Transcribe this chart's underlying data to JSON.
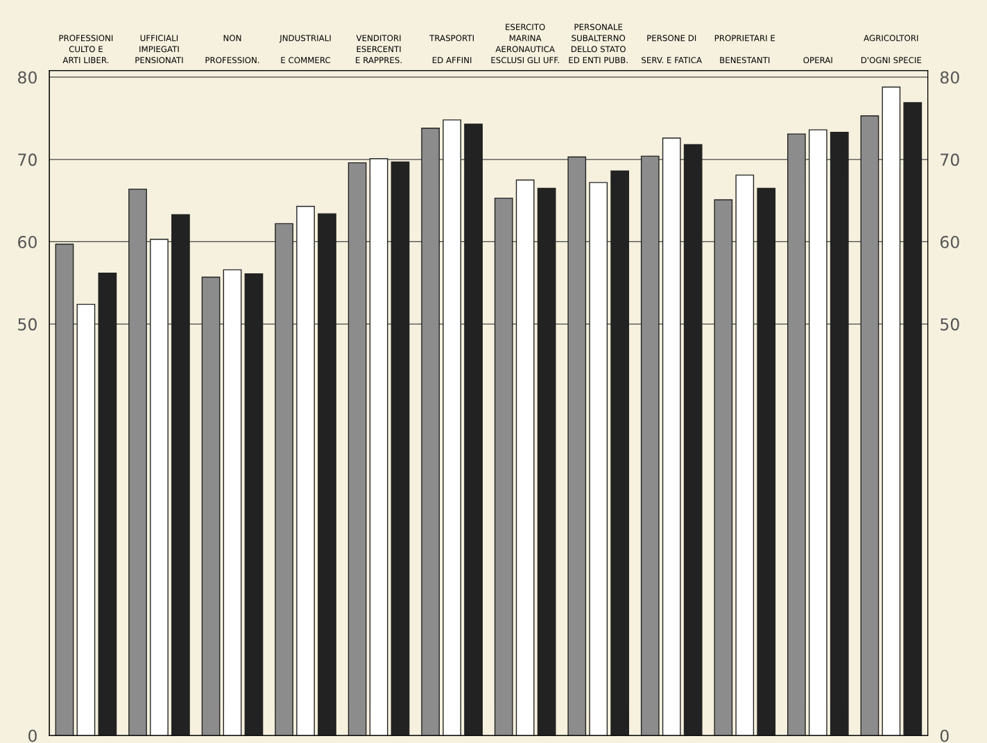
{
  "chart_data": {
    "type": "bar",
    "categories": [
      "PROFESSIONI\nCULTO E\nARTI LIBER.",
      "UFFICIALI\nIMPIEGATI\nPENSIONATI",
      "NON\n\nPROFESSION.",
      "JNDUSTRIALI\n\nE COMMERC",
      "VENDITORI\nESERCENTI\nE RAPPRES.",
      "TRASPORTI\n\nED AFFINI",
      "ESERCITO\nMARINA\nAERONAUTICA\nESCLUSI GLI UFF.",
      "PERSONALE\nSUBALTERNO\nDELLO STATO\nED ENTI PUBB.",
      "PERSONE DI\n\nSERV. E FATICA",
      "PROPRIETARI E\n\nBENESTANTI",
      "OPERAI",
      "AGRICOLTORI\n\nD'OGNI SPECIE"
    ],
    "series": [
      {
        "color": "#8c8c8c",
        "values": [
          59.7,
          66.4,
          55.7,
          62.2,
          69.6,
          73.8,
          65.3,
          70.3,
          70.4,
          65.1,
          73.1,
          75.3
        ]
      },
      {
        "color": "#ffffff",
        "values": [
          52.4,
          60.3,
          56.6,
          64.3,
          70.1,
          74.8,
          67.5,
          67.2,
          72.6,
          68.1,
          73.6,
          78.8
        ]
      },
      {
        "color": "#222222",
        "values": [
          56.2,
          63.3,
          56.1,
          63.4,
          69.7,
          74.3,
          66.5,
          68.6,
          71.8,
          66.5,
          73.3,
          76.9
        ]
      }
    ],
    "ylim": [
      0,
      80.8
    ],
    "yticks": [
      0,
      50,
      60,
      70,
      80
    ],
    "y2lim": [
      0,
      80.8
    ],
    "y2ticks": [
      0,
      50,
      60,
      70,
      80
    ],
    "grid": true,
    "legend": false
  }
}
